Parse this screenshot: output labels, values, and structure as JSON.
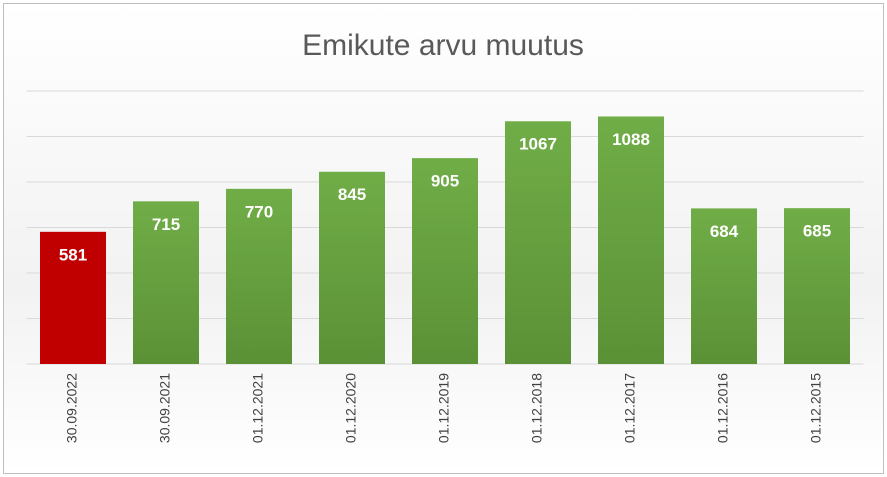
{
  "chart_data": {
    "type": "bar",
    "title": "Emikute arvu muutus",
    "categories": [
      "30.09.2022",
      "30.09.2021",
      "01.12.2021",
      "01.12.2020",
      "01.12.2019",
      "01.12.2018",
      "01.12.2017",
      "01.12.2016",
      "01.12.2015"
    ],
    "values": [
      581,
      715,
      770,
      845,
      905,
      1067,
      1088,
      684,
      685
    ],
    "colors": [
      "#c00000",
      "#6aa842",
      "#6aa842",
      "#6aa842",
      "#6aa842",
      "#6aa842",
      "#6aa842",
      "#6aa842",
      "#6aa842"
    ],
    "ylim": [
      0,
      1200
    ],
    "yticks": [
      0,
      200,
      400,
      600,
      800,
      1000,
      1200
    ],
    "grid": true
  }
}
